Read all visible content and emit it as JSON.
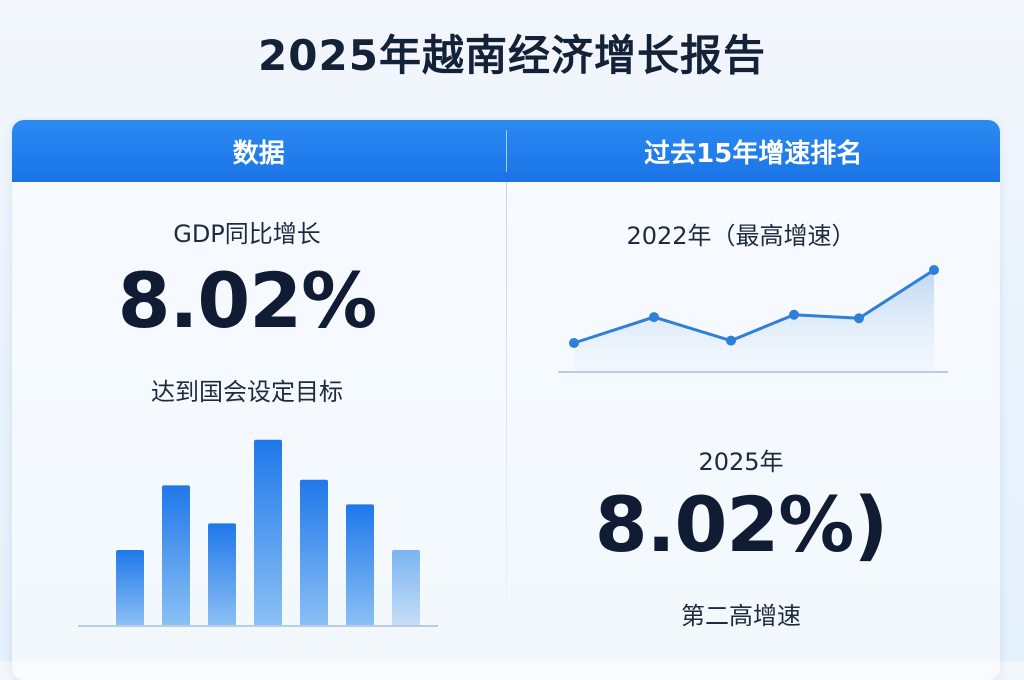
{
  "title": "2025年越南经济增长报告",
  "header": {
    "left": "数据",
    "right": "过去15年增速排名"
  },
  "left": {
    "label": "GDP同比增长",
    "value": "8.02%",
    "caption": "达到国会设定目标"
  },
  "right": {
    "top_label": "2022年（最高增速）",
    "year_label": "2025年",
    "value": "8.02%)",
    "caption": "第二高增速"
  },
  "colors": {
    "accent": "#1a74e6",
    "line": "#2e7fd6",
    "area": "#cfe1f6"
  },
  "chart_data": [
    {
      "type": "bar",
      "categories": [
        "1",
        "2",
        "3",
        "4",
        "5",
        "6",
        "7"
      ],
      "values": [
        40,
        74,
        54,
        98,
        77,
        64,
        40
      ],
      "ylim": [
        0,
        100
      ],
      "grid": false,
      "legend": "none"
    },
    {
      "type": "area",
      "x": [
        1,
        2,
        3,
        4,
        5,
        6
      ],
      "values": [
        38,
        60,
        40,
        62,
        59,
        100
      ],
      "ylim": [
        0,
        100
      ],
      "grid": false,
      "legend": "none"
    }
  ]
}
